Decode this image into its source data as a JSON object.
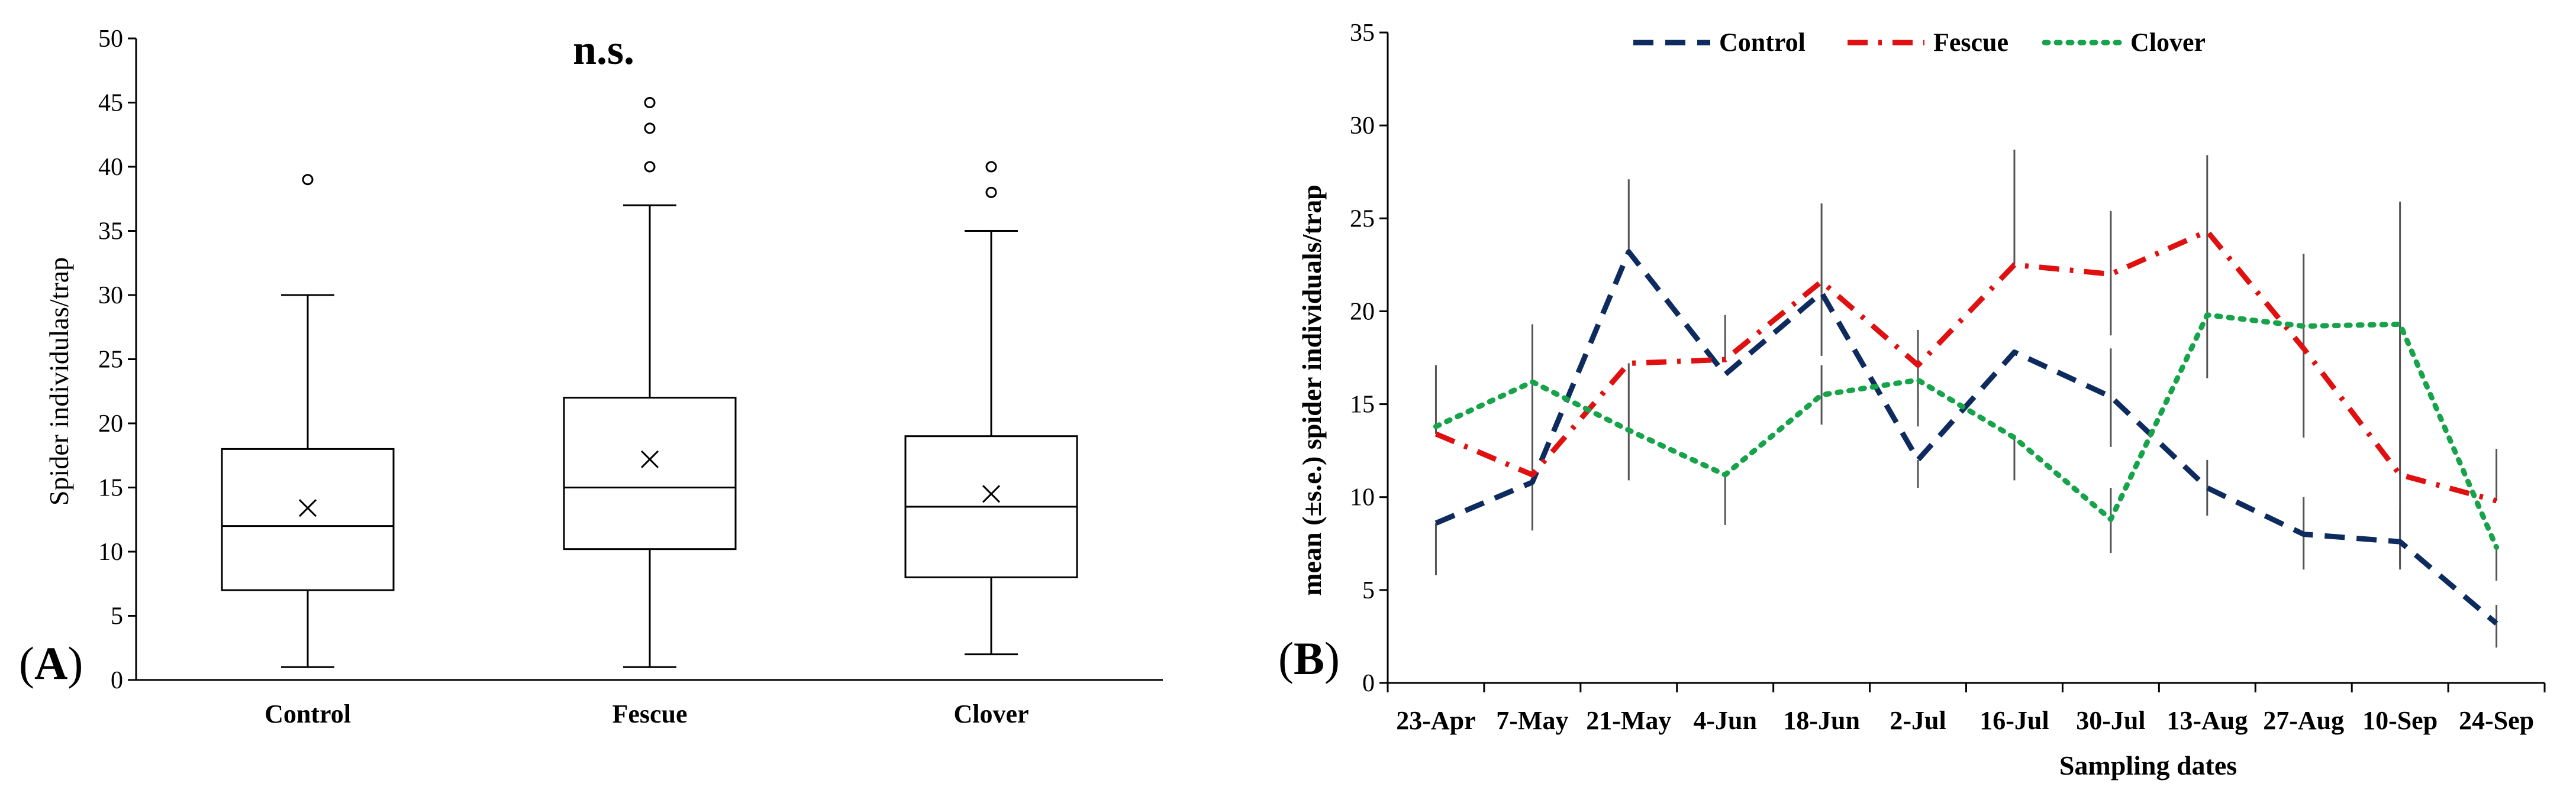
{
  "chart_data": [
    {
      "type": "boxplot",
      "panel": "A",
      "ylabel": "Spider individulas/trap",
      "ylim": [
        0,
        50
      ],
      "yticks": [
        0,
        5,
        10,
        15,
        20,
        25,
        30,
        35,
        40,
        45,
        50
      ],
      "annotation": "n.s.",
      "categories": [
        "Control",
        "Fescue",
        "Clover"
      ],
      "boxes": [
        {
          "name": "Control",
          "min": 1,
          "q1": 7,
          "median": 12,
          "q3": 18,
          "max": 30,
          "mean": 13.4,
          "outliers": [
            39
          ]
        },
        {
          "name": "Fescue",
          "min": 1,
          "q1": 10.2,
          "median": 15,
          "q3": 22,
          "max": 37,
          "mean": 17.2,
          "outliers": [
            40,
            43,
            45
          ]
        },
        {
          "name": "Clover",
          "min": 2,
          "q1": 8,
          "median": 13.5,
          "q3": 19,
          "max": 35,
          "mean": 14.5,
          "outliers": [
            38,
            40
          ]
        }
      ],
      "colors": {
        "stroke": "#000000"
      }
    },
    {
      "type": "line",
      "panel": "B",
      "xlabel": "Sampling dates",
      "ylabel": "mean (±s.e.) spider individuals/trap",
      "ylim": [
        0,
        35
      ],
      "yticks": [
        0,
        5,
        10,
        15,
        20,
        25,
        30,
        35
      ],
      "categories": [
        "23-Apr",
        "7-May",
        "21-May",
        "4-Jun",
        "18-Jun",
        "2-Jul",
        "16-Jul",
        "30-Jul",
        "13-Aug",
        "27-Aug",
        "10-Sep",
        "24-Sep"
      ],
      "series": [
        {
          "name": "Control",
          "color": "#0d2b5e",
          "dash": "dashed",
          "values": [
            8.6,
            10.8,
            23.2,
            16.6,
            21.0,
            12.0,
            17.8,
            15.4,
            10.5,
            8.0,
            7.6,
            3.2
          ],
          "se_low": [
            5.8,
            8.2,
            null,
            null,
            null,
            10.5,
            null,
            12.7,
            9.0,
            6.1,
            6.1,
            1.9
          ],
          "se_high": [
            null,
            null,
            27.1,
            null,
            25.8,
            null,
            null,
            18.0,
            12.0,
            10.0,
            9.3,
            4.2
          ]
        },
        {
          "name": "Fescue",
          "color": "#e01010",
          "dash": "dashdot",
          "values": [
            13.4,
            11.2,
            17.2,
            17.4,
            21.6,
            17.1,
            22.5,
            22.0,
            24.3,
            18.0,
            11.2,
            9.8
          ],
          "se_low": [
            null,
            null,
            10.9,
            null,
            17.6,
            14.9,
            null,
            18.7,
            16.4,
            13.2,
            null,
            null
          ],
          "se_high": [
            17.1,
            19.3,
            null,
            19.8,
            null,
            19.0,
            28.7,
            25.4,
            28.4,
            23.1,
            25.9,
            12.6
          ]
        },
        {
          "name": "Clover",
          "color": "#16a34a",
          "dash": "dotted",
          "values": [
            13.8,
            16.2,
            13.6,
            11.2,
            15.5,
            16.3,
            13.2,
            8.8,
            19.8,
            19.2,
            19.3,
            7.3
          ],
          "se_low": [
            null,
            null,
            null,
            8.5,
            13.9,
            13.8,
            10.9,
            7.0,
            null,
            null,
            6.3,
            5.5
          ],
          "se_high": [
            null,
            null,
            null,
            null,
            17.1,
            null,
            null,
            10.5,
            null,
            null,
            null,
            null
          ]
        }
      ]
    }
  ]
}
